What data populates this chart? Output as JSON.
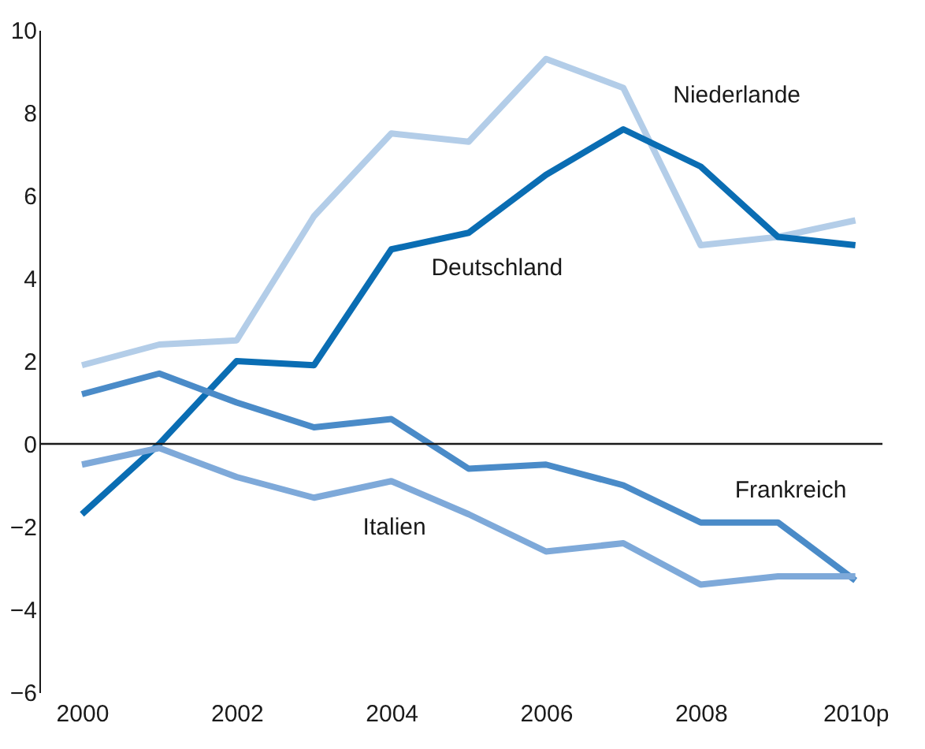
{
  "chart_data": {
    "type": "line",
    "x": [
      2000,
      2001,
      2002,
      2003,
      2004,
      2005,
      2006,
      2007,
      2008,
      2009,
      2010
    ],
    "series": [
      {
        "name": "Niederlande",
        "color": "#b3cde8",
        "values": [
          1.9,
          2.4,
          2.5,
          5.5,
          7.5,
          7.3,
          9.3,
          8.6,
          4.8,
          5.0,
          5.4
        ]
      },
      {
        "name": "Deutschland",
        "color": "#0a6db3",
        "values": [
          -1.7,
          0.0,
          2.0,
          1.9,
          4.7,
          5.1,
          6.5,
          7.6,
          6.7,
          5.0,
          4.8
        ]
      },
      {
        "name": "Frankreich",
        "color": "#4a8bc8",
        "values": [
          1.2,
          1.7,
          1.0,
          0.4,
          0.6,
          -0.6,
          -0.5,
          -1.0,
          -1.9,
          -1.9,
          -3.3
        ]
      },
      {
        "name": "Italien",
        "color": "#7ea9d9",
        "values": [
          -0.5,
          -0.1,
          -0.8,
          -1.3,
          -0.9,
          -1.7,
          -2.6,
          -2.4,
          -3.4,
          -3.2,
          -3.2
        ]
      }
    ],
    "xlim": [
      1999.45,
      2010.35
    ],
    "xticks": [
      2000,
      2002,
      2004,
      2006,
      2008,
      {
        "value": 2010,
        "label": "2010p"
      }
    ],
    "ylim": [
      -6,
      10
    ],
    "yticks": [
      -6,
      -4,
      -2,
      0,
      2,
      4,
      6,
      8,
      10
    ],
    "ref_lines": [
      {
        "axis": "y",
        "value": 0,
        "color": "#1a1a1a"
      }
    ],
    "grid": false,
    "legend": false,
    "marker": "none",
    "line_style": "solid"
  }
}
